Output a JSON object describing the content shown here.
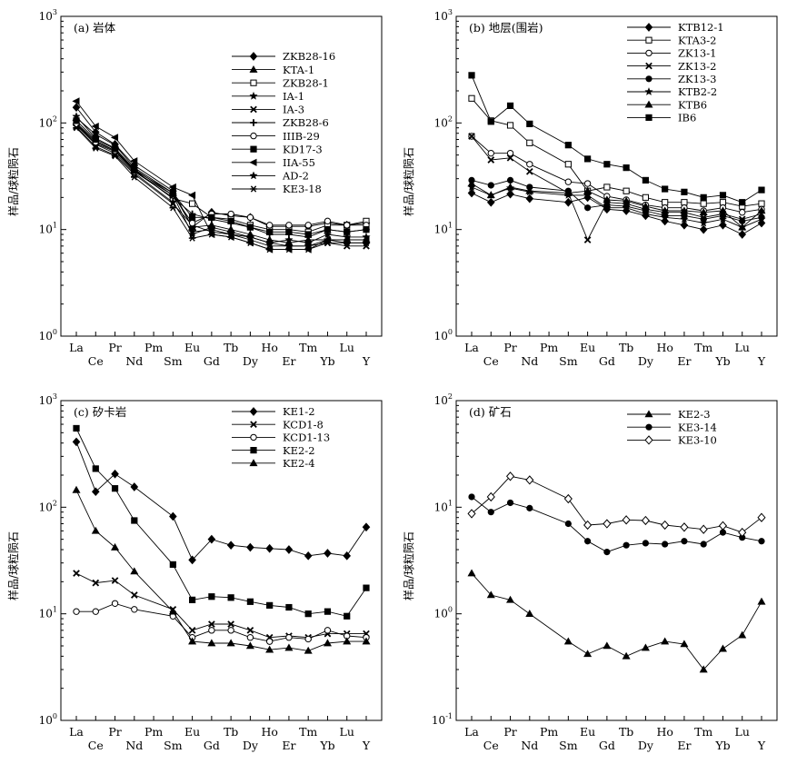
{
  "chart_data": [
    {
      "type": "line",
      "title": "(a) 岩体",
      "ylabel": "样品/球粒陨石",
      "yscale": "log",
      "ylim": [
        1,
        1000
      ],
      "yticks": [
        {
          "base": "10",
          "exp": "0"
        },
        {
          "base": "10",
          "exp": "1"
        },
        {
          "base": "10",
          "exp": "2"
        },
        {
          "base": "10",
          "exp": "3"
        }
      ],
      "legend_position": "top-right",
      "categories": [
        "La",
        "Ce",
        "Pr",
        "Nd",
        "Pm",
        "Sm",
        "Eu",
        "Gd",
        "Tb",
        "Dy",
        "Ho",
        "Er",
        "Tm",
        "Yb",
        "Lu",
        "Y"
      ],
      "series": [
        {
          "name": "ZKB28-16",
          "marker": "diamond",
          "values": [
            140,
            82,
            63,
            40,
            null,
            23,
            10.5,
            14.5,
            13.5,
            13,
            10.7,
            10.7,
            10.7,
            11.5,
            11,
            11.5
          ]
        },
        {
          "name": "KTA-1",
          "marker": "triangle",
          "values": [
            112,
            78,
            62,
            38,
            null,
            22,
            10.5,
            11,
            10,
            9,
            8,
            7.5,
            8,
            8,
            8,
            8
          ]
        },
        {
          "name": "ZKB28-1",
          "marker": "square-open",
          "values": [
            100,
            68,
            55,
            36,
            null,
            19.5,
            17.5,
            13,
            12.5,
            11,
            10,
            10,
            9.5,
            11,
            11,
            12
          ]
        },
        {
          "name": "IA-1",
          "marker": "star",
          "values": [
            95,
            63,
            52,
            34,
            null,
            18,
            9.5,
            10,
            9,
            8.5,
            7.5,
            7,
            7,
            8,
            7.5,
            7.5
          ]
        },
        {
          "name": "IA-3",
          "marker": "x",
          "values": [
            92,
            60,
            50,
            33,
            null,
            17.5,
            11,
            9.5,
            9,
            8,
            7,
            7,
            7,
            7.5,
            7,
            7
          ]
        },
        {
          "name": "ZKB28-6",
          "marker": "plus",
          "values": [
            97,
            64,
            54,
            35,
            null,
            20,
            14,
            12.5,
            11.5,
            10.5,
            9,
            9,
            8.5,
            10,
            9.5,
            10
          ]
        },
        {
          "name": "IIIB-29",
          "marker": "circle-open",
          "values": [
            98,
            66,
            55,
            35,
            null,
            21,
            11.5,
            14,
            14,
            13,
            11,
            11,
            11,
            12,
            11,
            11
          ]
        },
        {
          "name": "KD17-3",
          "marker": "square",
          "values": [
            105,
            70,
            57,
            36,
            null,
            22,
            13,
            13,
            12,
            10.5,
            9.5,
            9.5,
            9,
            10,
            9.5,
            10
          ]
        },
        {
          "name": "IIA-55",
          "marker": "tri-left",
          "values": [
            160,
            93,
            73,
            44,
            null,
            25,
            21,
            9,
            8.5,
            7.5,
            6.5,
            6.5,
            6.5,
            8,
            8,
            8
          ]
        },
        {
          "name": "AD-2",
          "marker": "star",
          "values": [
            115,
            72,
            58,
            37,
            null,
            21,
            9,
            10.5,
            9.5,
            8.5,
            7.5,
            8,
            7.5,
            9,
            8.5,
            8.5
          ]
        },
        {
          "name": "KE3-18",
          "marker": "asterisk",
          "values": [
            90,
            58,
            49,
            31,
            null,
            16,
            8.3,
            9,
            8.5,
            7.5,
            6.5,
            6.5,
            6.5,
            7.5,
            7.5,
            7.5
          ]
        }
      ]
    },
    {
      "type": "line",
      "title": "(b) 地层(围岩)",
      "ylabel": "样品/球粒陨石",
      "yscale": "log",
      "ylim": [
        1,
        1000
      ],
      "yticks": [
        {
          "base": "10",
          "exp": "0"
        },
        {
          "base": "10",
          "exp": "1"
        },
        {
          "base": "10",
          "exp": "2"
        },
        {
          "base": "10",
          "exp": "3"
        }
      ],
      "legend_position": "top-right",
      "categories": [
        "La",
        "Ce",
        "Pr",
        "Nd",
        "Pm",
        "Sm",
        "Eu",
        "Gd",
        "Tb",
        "Dy",
        "Ho",
        "Er",
        "Tm",
        "Yb",
        "Lu",
        "Y"
      ],
      "series": [
        {
          "name": "KTB12-1",
          "marker": "diamond",
          "values": [
            22,
            18,
            21.5,
            19.5,
            null,
            18,
            20,
            15.5,
            15,
            13.5,
            12,
            11,
            10,
            11,
            9,
            11.5
          ]
        },
        {
          "name": "KTA3-2",
          "marker": "square-open",
          "values": [
            170,
            105,
            95,
            65,
            null,
            41,
            23,
            25,
            23,
            20,
            18,
            18,
            17.5,
            18,
            16.5,
            17.5
          ]
        },
        {
          "name": "ZK13-1",
          "marker": "circle-open",
          "values": [
            75,
            52,
            52,
            41,
            null,
            28,
            27,
            20.5,
            19,
            17,
            16,
            16,
            15,
            16,
            14.5,
            15.5
          ]
        },
        {
          "name": "ZK13-2",
          "marker": "x",
          "values": [
            75,
            45,
            47,
            35,
            null,
            22,
            8,
            18,
            17.5,
            15.5,
            14.5,
            14.5,
            13,
            14,
            12.5,
            14
          ]
        },
        {
          "name": "ZK13-3",
          "marker": "circle",
          "values": [
            29,
            26,
            29,
            25,
            null,
            23,
            16,
            17,
            16.5,
            15,
            13.5,
            13.5,
            12.5,
            13.5,
            12,
            13
          ]
        },
        {
          "name": "KTB2-2",
          "marker": "star",
          "values": [
            25,
            21,
            24.5,
            22.5,
            null,
            21,
            21,
            16,
            16,
            14,
            13,
            12.5,
            11.5,
            12.5,
            10.5,
            12.5
          ]
        },
        {
          "name": "KTB6",
          "marker": "triangle",
          "values": [
            27,
            21,
            25,
            23,
            null,
            22,
            23,
            19,
            18.5,
            16.5,
            15,
            15,
            14.5,
            15,
            10.5,
            15
          ]
        },
        {
          "name": "IB6",
          "marker": "square",
          "values": [
            280,
            103,
            145,
            98,
            null,
            62,
            46,
            41,
            38,
            29,
            24,
            22.5,
            20,
            21,
            18,
            23.5
          ]
        }
      ]
    },
    {
      "type": "line",
      "title": "(c) 矽卡岩",
      "ylabel": "样品/球粒陨石",
      "yscale": "log",
      "ylim": [
        1,
        1000
      ],
      "yticks": [
        {
          "base": "10",
          "exp": "0"
        },
        {
          "base": "10",
          "exp": "1"
        },
        {
          "base": "10",
          "exp": "2"
        },
        {
          "base": "10",
          "exp": "3"
        }
      ],
      "legend_position": "top-right",
      "categories": [
        "La",
        "Ce",
        "Pr",
        "Nd",
        "Pm",
        "Sm",
        "Eu",
        "Gd",
        "Tb",
        "Dy",
        "Ho",
        "Er",
        "Tm",
        "Yb",
        "Lu",
        "Y"
      ],
      "series": [
        {
          "name": "KE1-2",
          "marker": "diamond",
          "values": [
            410,
            140,
            205,
            155,
            null,
            82,
            32,
            50,
            44,
            42,
            41,
            40,
            35,
            37,
            35,
            65
          ]
        },
        {
          "name": "KCD1-8",
          "marker": "x",
          "values": [
            24,
            19.5,
            20.5,
            15,
            null,
            11,
            7,
            8,
            8,
            7,
            6,
            6.2,
            6,
            6.5,
            6.5,
            6.5
          ]
        },
        {
          "name": "KCD1-13",
          "marker": "circle-open",
          "values": [
            10.5,
            10.5,
            12.5,
            11,
            null,
            9.5,
            6,
            7,
            7,
            6,
            5.5,
            6,
            5.8,
            7,
            6.2,
            6
          ]
        },
        {
          "name": "KE2-2",
          "marker": "square",
          "values": [
            550,
            230,
            150,
            75,
            null,
            29,
            13.5,
            14.5,
            14.2,
            13,
            12,
            11.5,
            10,
            10.5,
            9.5,
            17.5
          ]
        },
        {
          "name": "KE2-4",
          "marker": "triangle",
          "values": [
            145,
            60,
            42,
            25,
            null,
            10.5,
            5.5,
            5.3,
            5.3,
            5.0,
            4.6,
            4.8,
            4.5,
            5.3,
            5.5,
            5.5
          ]
        }
      ]
    },
    {
      "type": "line",
      "title": "(d) 矿石",
      "ylabel": "样品/球粒陨石",
      "yscale": "log",
      "ylim": [
        0.1,
        100
      ],
      "yticks": [
        {
          "base": "10",
          "exp": "-1"
        },
        {
          "base": "10",
          "exp": "0"
        },
        {
          "base": "10",
          "exp": "1"
        },
        {
          "base": "10",
          "exp": "2"
        }
      ],
      "legend_position": "top-right",
      "categories": [
        "La",
        "Ce",
        "Pr",
        "Nd",
        "Pm",
        "Sm",
        "Eu",
        "Gd",
        "Tb",
        "Dy",
        "Ho",
        "Er",
        "Tm",
        "Yb",
        "Lu",
        "Y"
      ],
      "series": [
        {
          "name": "KE2-3",
          "marker": "triangle",
          "values": [
            2.4,
            1.5,
            1.35,
            1.0,
            null,
            0.55,
            0.42,
            0.5,
            0.4,
            0.48,
            0.55,
            0.52,
            0.3,
            0.47,
            0.63,
            1.3
          ]
        },
        {
          "name": "KE3-14",
          "marker": "circle",
          "values": [
            12.5,
            9,
            11,
            9.8,
            null,
            7,
            4.8,
            3.8,
            4.4,
            4.6,
            4.5,
            4.8,
            4.5,
            5.8,
            5.2,
            4.8
          ]
        },
        {
          "name": "KE3-10",
          "marker": "diamond-open",
          "values": [
            8.7,
            12.5,
            19.5,
            18,
            null,
            12,
            6.8,
            7,
            7.6,
            7.5,
            6.8,
            6.5,
            6.2,
            6.7,
            5.8,
            8
          ]
        }
      ]
    }
  ]
}
